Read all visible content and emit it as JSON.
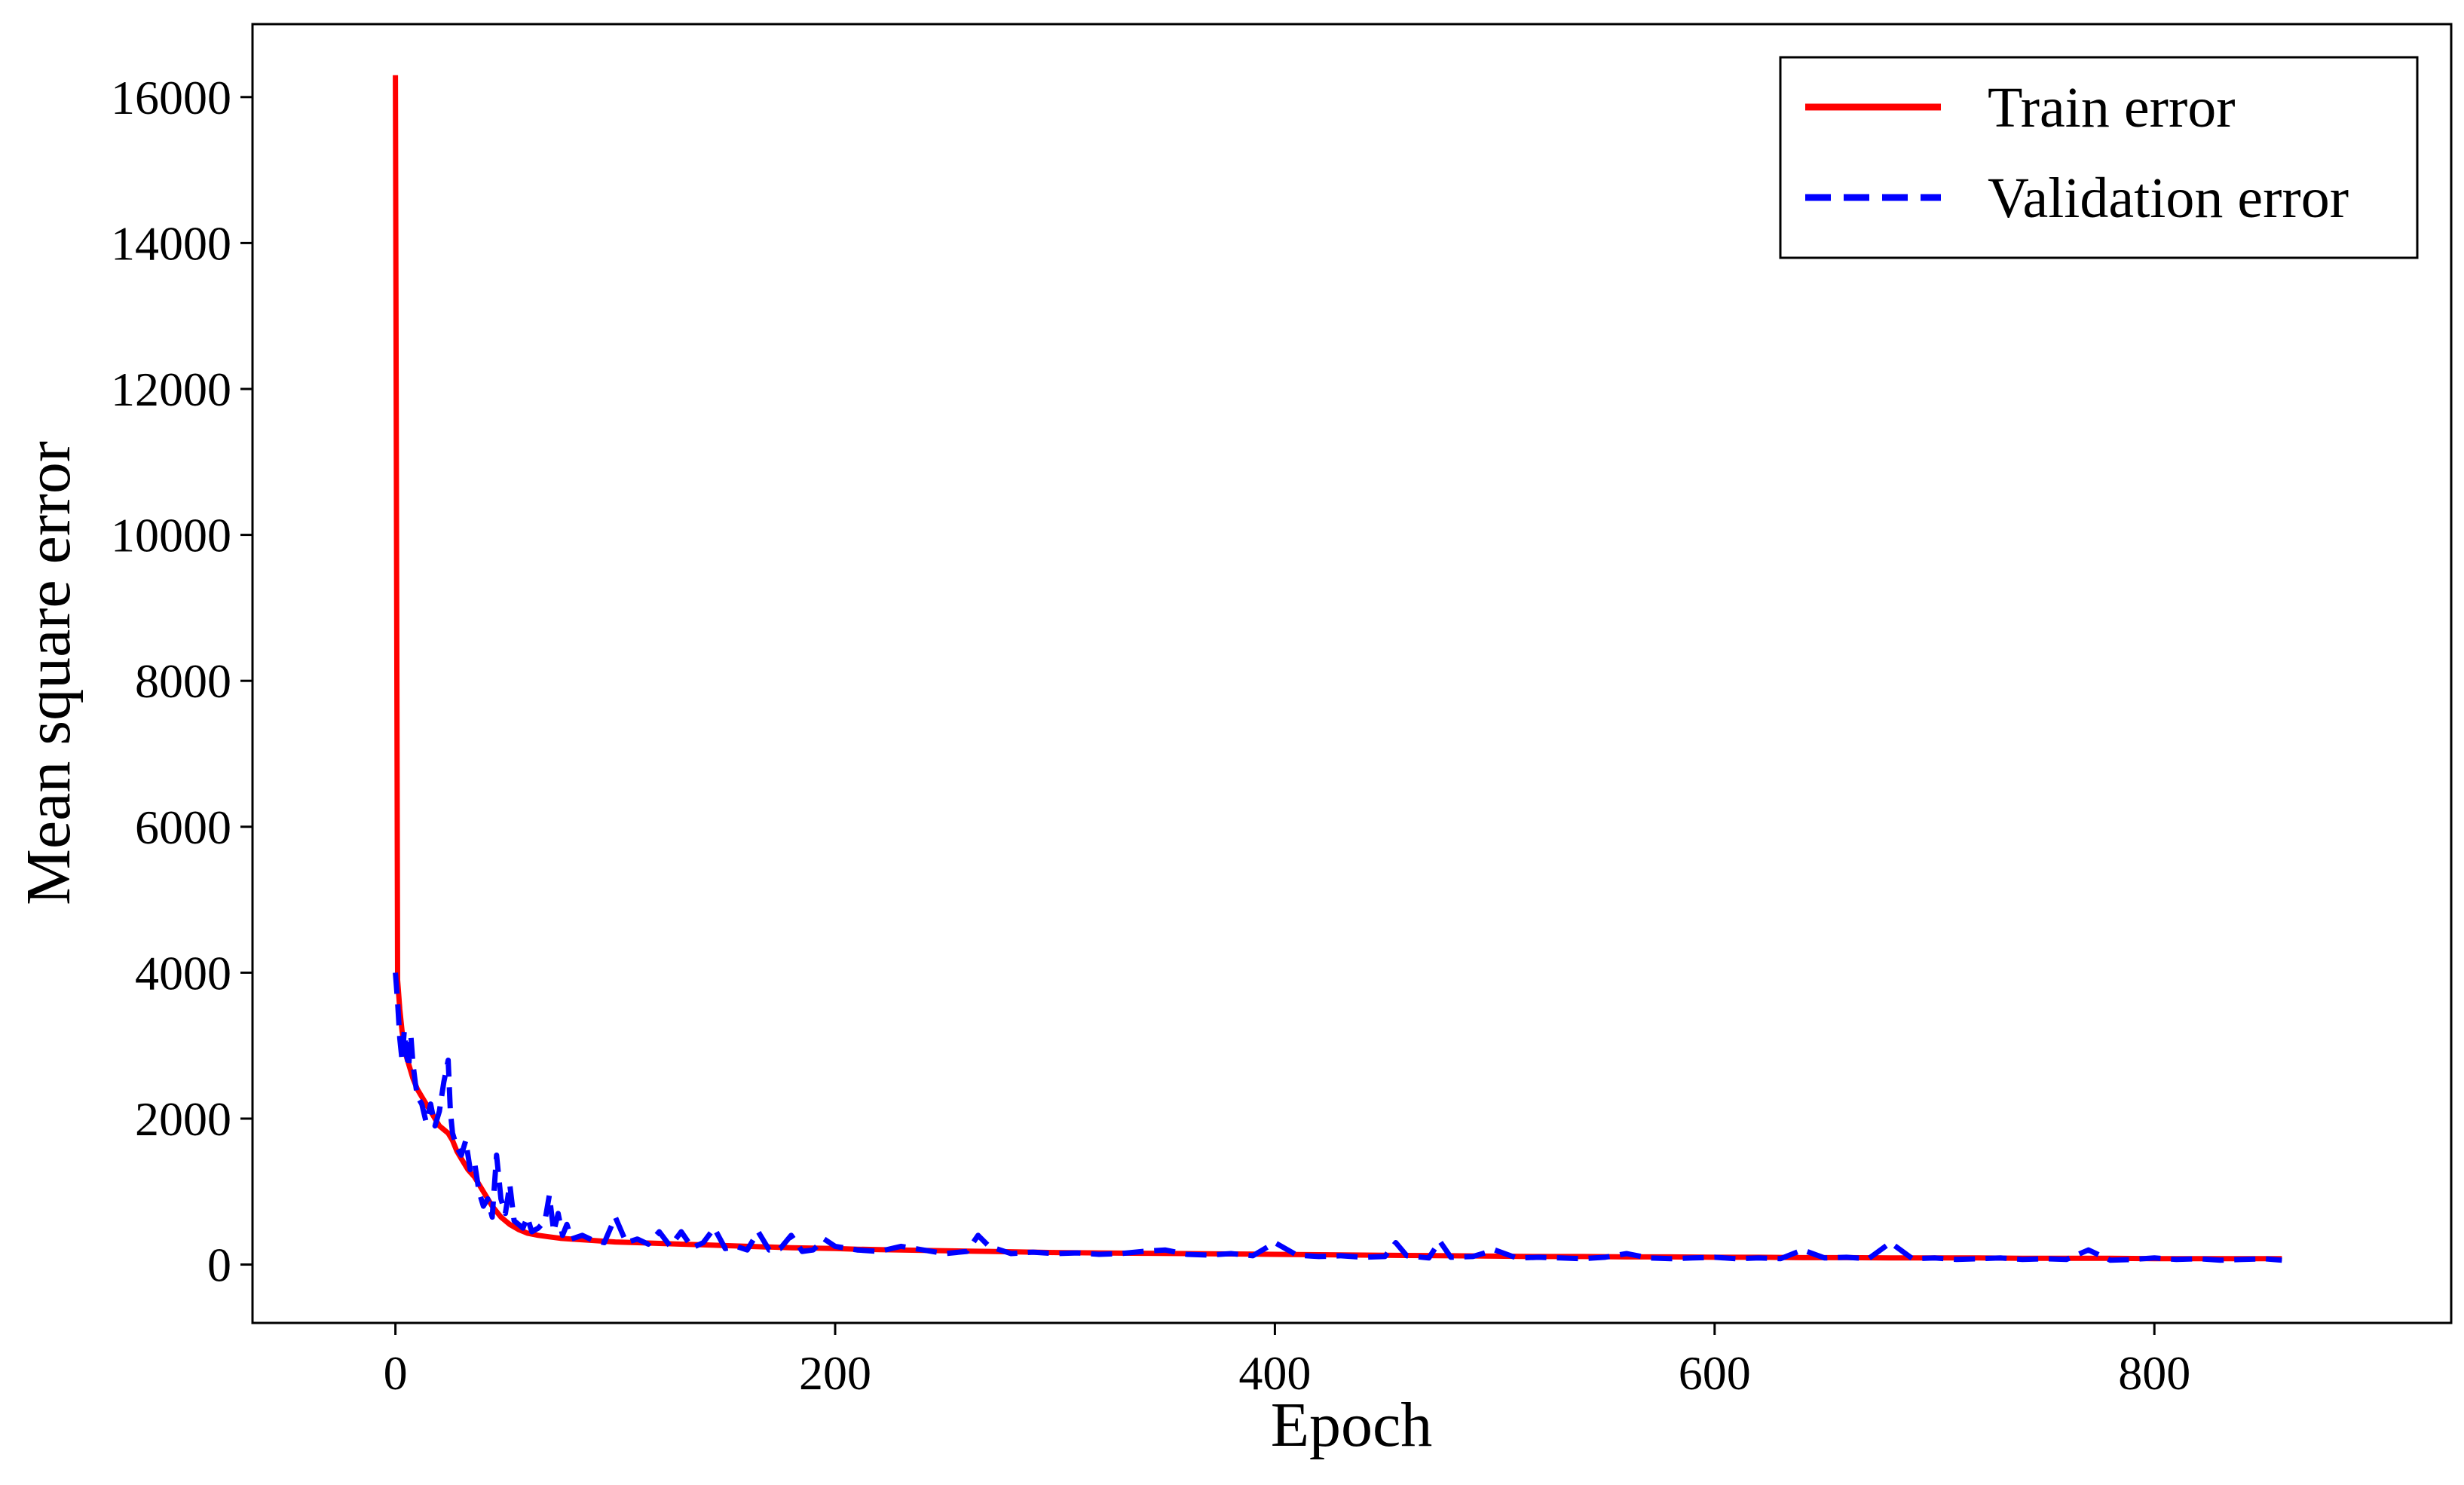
{
  "chart_data": {
    "type": "line",
    "title": "",
    "xlabel": "Epoch",
    "ylabel": "Mean square error",
    "xlim": [
      -65,
      935
    ],
    "ylim": [
      -800,
      17000
    ],
    "xticks": [
      0,
      200,
      400,
      600,
      800
    ],
    "yticks": [
      0,
      2000,
      4000,
      6000,
      8000,
      10000,
      12000,
      14000,
      16000
    ],
    "grid": false,
    "legend": {
      "placement": "top-right"
    },
    "series": [
      {
        "name": "Train error",
        "color": "#ff0000",
        "style": "solid",
        "x": [
          0,
          1,
          2,
          3,
          4,
          5,
          6,
          7,
          8,
          10,
          12,
          14,
          16,
          18,
          20,
          22,
          24,
          26,
          28,
          30,
          33,
          36,
          40,
          44,
          48,
          52,
          56,
          60,
          65,
          70,
          75,
          80,
          90,
          100,
          110,
          120,
          130,
          140,
          150,
          160,
          170,
          180,
          190,
          200,
          210,
          220,
          230,
          240,
          250,
          260,
          270,
          280,
          290,
          300,
          320,
          340,
          360,
          380,
          400,
          420,
          440,
          460,
          480,
          500,
          520,
          540,
          560,
          580,
          600,
          620,
          640,
          660,
          680,
          700,
          720,
          740,
          760,
          780,
          800,
          820,
          840,
          858
        ],
        "values": [
          16300,
          3900,
          3500,
          3200,
          3000,
          2850,
          2750,
          2650,
          2550,
          2400,
          2300,
          2200,
          2100,
          2000,
          1900,
          1850,
          1800,
          1700,
          1550,
          1450,
          1300,
          1200,
          1000,
          800,
          650,
          550,
          480,
          430,
          400,
          380,
          360,
          350,
          330,
          310,
          300,
          290,
          280,
          270,
          260,
          250,
          240,
          230,
          225,
          220,
          210,
          205,
          200,
          195,
          190,
          185,
          180,
          175,
          170,
          165,
          160,
          155,
          150,
          145,
          140,
          135,
          130,
          125,
          120,
          115,
          110,
          110,
          105,
          105,
          100,
          100,
          95,
          95,
          90,
          90,
          90,
          85,
          85,
          85,
          80,
          80,
          80,
          80
        ]
      },
      {
        "name": "Validation error",
        "color": "#0000ff",
        "style": "dashed",
        "x": [
          0,
          1,
          2,
          3,
          4,
          5,
          6,
          7,
          8,
          9,
          10,
          12,
          14,
          16,
          18,
          20,
          22,
          24,
          25,
          26,
          28,
          30,
          32,
          34,
          36,
          38,
          40,
          42,
          44,
          46,
          48,
          50,
          52,
          54,
          56,
          58,
          60,
          62,
          65,
          68,
          70,
          72,
          74,
          76,
          78,
          80,
          85,
          90,
          95,
          100,
          105,
          110,
          115,
          120,
          125,
          130,
          135,
          140,
          145,
          150,
          155,
          160,
          165,
          170,
          175,
          180,
          185,
          190,
          195,
          200,
          210,
          220,
          230,
          240,
          250,
          260,
          265,
          270,
          280,
          290,
          300,
          310,
          320,
          330,
          340,
          350,
          360,
          370,
          380,
          390,
          400,
          410,
          420,
          430,
          440,
          450,
          455,
          460,
          470,
          475,
          480,
          490,
          500,
          510,
          520,
          530,
          540,
          550,
          560,
          570,
          580,
          590,
          600,
          610,
          620,
          630,
          640,
          650,
          660,
          670,
          680,
          690,
          700,
          710,
          720,
          730,
          740,
          750,
          760,
          770,
          780,
          790,
          800,
          810,
          820,
          830,
          840,
          850,
          858
        ],
        "values": [
          4000,
          3600,
          3100,
          2800,
          3200,
          2900,
          2700,
          3150,
          2750,
          2500,
          2300,
          2200,
          1950,
          2200,
          1900,
          2100,
          2500,
          2800,
          2100,
          1800,
          1600,
          1500,
          1700,
          1300,
          1400,
          1000,
          800,
          900,
          650,
          1500,
          900,
          700,
          1100,
          600,
          550,
          500,
          650,
          450,
          500,
          600,
          950,
          450,
          700,
          400,
          550,
          350,
          400,
          330,
          300,
          650,
          300,
          350,
          280,
          450,
          250,
          450,
          230,
          300,
          500,
          220,
          250,
          200,
          450,
          200,
          220,
          400,
          180,
          200,
          350,
          250,
          200,
          180,
          250,
          200,
          150,
          180,
          400,
          250,
          150,
          170,
          150,
          160,
          140,
          150,
          180,
          200,
          140,
          130,
          150,
          120,
          300,
          130,
          110,
          120,
          100,
          110,
          300,
          120,
          90,
          320,
          100,
          110,
          200,
          90,
          100,
          90,
          80,
          100,
          150,
          90,
          80,
          90,
          100,
          80,
          90,
          80,
          200,
          90,
          100,
          80,
          300,
          80,
          90,
          70,
          80,
          90,
          70,
          80,
          70,
          200,
          60,
          70,
          90,
          70,
          80,
          60,
          70,
          80,
          60
        ]
      }
    ]
  }
}
